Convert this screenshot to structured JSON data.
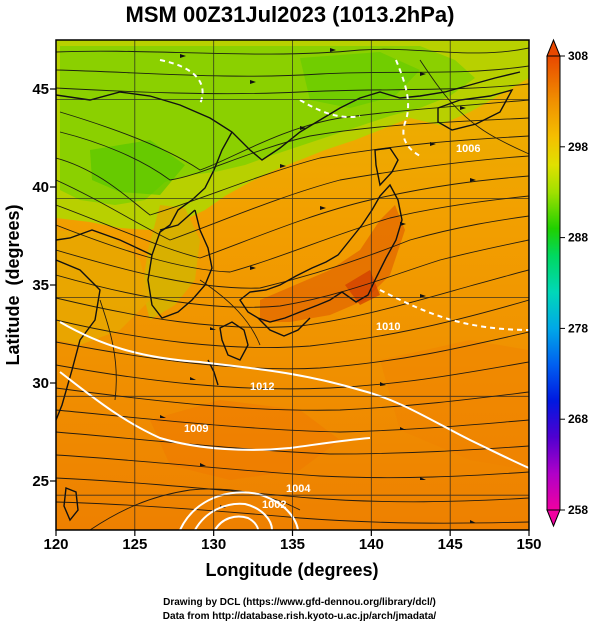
{
  "title": "MSM 00Z31Jul2023 (1013.2hPa)",
  "x_axis": {
    "label": "Longitude (degrees)",
    "range": [
      120,
      150
    ],
    "ticks": [
      "120",
      "125",
      "130",
      "135",
      "140",
      "145",
      "150"
    ]
  },
  "y_axis": {
    "label": "Latitude  (degrees)",
    "range": [
      22.5,
      47.5
    ],
    "ticks": [
      "25",
      "30",
      "35",
      "40",
      "45"
    ]
  },
  "colorbar": {
    "min": 258,
    "max": 308,
    "tick_labels": [
      "308",
      "298",
      "288",
      "278",
      "268",
      "258"
    ],
    "colors": [
      "#f7008a",
      "#c400c8",
      "#7a00d0",
      "#2c00d8",
      "#0028e0",
      "#0064f2",
      "#00a0f0",
      "#00d2d2",
      "#00e08a",
      "#00d040",
      "#20d000",
      "#88e000",
      "#d4e400",
      "#f0c800",
      "#f5a000",
      "#f07d00",
      "#e85a00",
      "#e03a00"
    ]
  },
  "contours": {
    "color": "#ffffff",
    "labels": [
      "1010",
      "1012",
      "1009",
      "1002",
      "1004",
      "1006"
    ]
  },
  "credits": {
    "line1": "Drawing by DCL (https://www.gfd-dennou.org/library/dcl/)",
    "line2": "Data from http://database.rish.kyoto-u.ac.jp/arch/jmadata/"
  }
}
